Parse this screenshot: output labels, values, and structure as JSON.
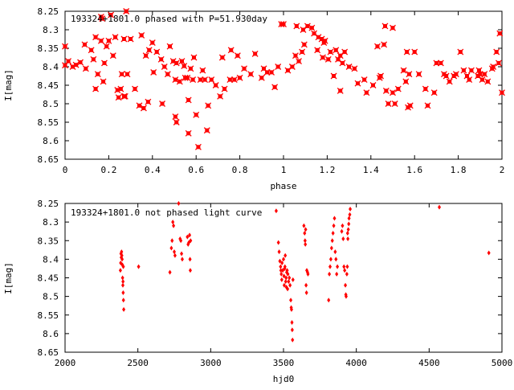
{
  "colors": {
    "marker": "#ff0000",
    "axis": "#000000",
    "background": "#ffffff"
  },
  "chart_data": [
    {
      "type": "scatter",
      "title": "193324+1801.0 phased with P=51.930day",
      "xlabel": "phase",
      "ylabel": "I[mag]",
      "xlim": [
        0,
        2
      ],
      "ylim": [
        8.65,
        8.25
      ],
      "y_inverted": true,
      "xticks": [
        0,
        0.2,
        0.4,
        0.6,
        0.8,
        1,
        1.2,
        1.4,
        1.6,
        1.8,
        2
      ],
      "xtick_labels": [
        "0",
        "0.2",
        "0.4",
        "0.6",
        "0.8",
        "1",
        "1.2",
        "1.4",
        "1.6",
        "1.8",
        "2"
      ],
      "yticks": [
        8.25,
        8.3,
        8.35,
        8.4,
        8.45,
        8.5,
        8.55,
        8.6,
        8.65
      ],
      "ytick_labels": [
        "8.25",
        "8.3",
        "8.35",
        "8.4",
        "8.45",
        "8.5",
        "8.55",
        "8.6",
        "8.65"
      ],
      "grid": false,
      "marker": "star",
      "points": [
        [
          0.0,
          8.345
        ],
        [
          0.0,
          8.396
        ],
        [
          0.015,
          8.385
        ],
        [
          0.035,
          8.4
        ],
        [
          0.05,
          8.395
        ],
        [
          0.07,
          8.388
        ],
        [
          0.09,
          8.34
        ],
        [
          0.095,
          8.405
        ],
        [
          0.12,
          8.355
        ],
        [
          0.13,
          8.38
        ],
        [
          0.14,
          8.32
        ],
        [
          0.14,
          8.46
        ],
        [
          0.15,
          8.42
        ],
        [
          0.165,
          8.33
        ],
        [
          0.165,
          8.265
        ],
        [
          0.17,
          8.27
        ],
        [
          0.175,
          8.44
        ],
        [
          0.18,
          8.39
        ],
        [
          0.19,
          8.345
        ],
        [
          0.2,
          8.33
        ],
        [
          0.21,
          8.26
        ],
        [
          0.22,
          8.37
        ],
        [
          0.23,
          8.32
        ],
        [
          0.24,
          8.463
        ],
        [
          0.245,
          8.483
        ],
        [
          0.255,
          8.46
        ],
        [
          0.26,
          8.42
        ],
        [
          0.27,
          8.48
        ],
        [
          0.27,
          8.325
        ],
        [
          0.275,
          8.48
        ],
        [
          0.28,
          8.25
        ],
        [
          0.285,
          8.42
        ],
        [
          0.3,
          8.325
        ],
        [
          0.32,
          8.46
        ],
        [
          0.34,
          8.505
        ],
        [
          0.35,
          8.315
        ],
        [
          0.36,
          8.512
        ],
        [
          0.37,
          8.37
        ],
        [
          0.38,
          8.495
        ],
        [
          0.385,
          8.355
        ],
        [
          0.4,
          8.335
        ],
        [
          0.405,
          8.415
        ],
        [
          0.42,
          8.36
        ],
        [
          0.44,
          8.38
        ],
        [
          0.445,
          8.5
        ],
        [
          0.455,
          8.4
        ],
        [
          0.47,
          8.42
        ],
        [
          0.48,
          8.345
        ],
        [
          0.495,
          8.385
        ],
        [
          0.505,
          8.535
        ],
        [
          0.505,
          8.435
        ],
        [
          0.51,
          8.39
        ],
        [
          0.51,
          8.55
        ],
        [
          0.525,
          8.44
        ],
        [
          0.535,
          8.385
        ],
        [
          0.545,
          8.398
        ],
        [
          0.55,
          8.43
        ],
        [
          0.56,
          8.43
        ],
        [
          0.565,
          8.49
        ],
        [
          0.565,
          8.58
        ],
        [
          0.575,
          8.405
        ],
        [
          0.585,
          8.435
        ],
        [
          0.59,
          8.375
        ],
        [
          0.6,
          8.53
        ],
        [
          0.61,
          8.617
        ],
        [
          0.62,
          8.435
        ],
        [
          0.63,
          8.41
        ],
        [
          0.64,
          8.435
        ],
        [
          0.65,
          8.572
        ],
        [
          0.655,
          8.505
        ],
        [
          0.67,
          8.435
        ],
        [
          0.69,
          8.45
        ],
        [
          0.71,
          8.48
        ],
        [
          0.72,
          8.375
        ],
        [
          0.73,
          8.46
        ],
        [
          0.755,
          8.435
        ],
        [
          0.76,
          8.355
        ],
        [
          0.775,
          8.435
        ],
        [
          0.79,
          8.37
        ],
        [
          0.8,
          8.43
        ],
        [
          0.82,
          8.405
        ],
        [
          0.85,
          8.42
        ],
        [
          0.87,
          8.365
        ],
        [
          0.9,
          8.43
        ],
        [
          0.91,
          8.405
        ],
        [
          0.925,
          8.415
        ],
        [
          0.945,
          8.415
        ],
        [
          0.96,
          8.455
        ],
        [
          0.975,
          8.4
        ],
        [
          0.99,
          8.285
        ],
        [
          1.0,
          8.285
        ],
        [
          1.02,
          8.41
        ],
        [
          1.04,
          8.4
        ],
        [
          1.055,
          8.37
        ],
        [
          1.06,
          8.29
        ],
        [
          1.07,
          8.385
        ],
        [
          1.085,
          8.36
        ],
        [
          1.09,
          8.3
        ],
        [
          1.095,
          8.34
        ],
        [
          1.11,
          8.29
        ],
        [
          1.13,
          8.295
        ],
        [
          1.14,
          8.31
        ],
        [
          1.155,
          8.355
        ],
        [
          1.16,
          8.32
        ],
        [
          1.175,
          8.325
        ],
        [
          1.18,
          8.375
        ],
        [
          1.185,
          8.335
        ],
        [
          1.19,
          8.33
        ],
        [
          1.205,
          8.38
        ],
        [
          1.215,
          8.36
        ],
        [
          1.23,
          8.425
        ],
        [
          1.24,
          8.355
        ],
        [
          1.25,
          8.38
        ],
        [
          1.26,
          8.37
        ],
        [
          1.26,
          8.465
        ],
        [
          1.27,
          8.39
        ],
        [
          1.28,
          8.36
        ],
        [
          1.3,
          8.4
        ],
        [
          1.325,
          8.405
        ],
        [
          1.34,
          8.445
        ],
        [
          1.37,
          8.435
        ],
        [
          1.38,
          8.47
        ],
        [
          1.41,
          8.45
        ],
        [
          1.43,
          8.345
        ],
        [
          1.44,
          8.43
        ],
        [
          1.445,
          8.425
        ],
        [
          1.46,
          8.34
        ],
        [
          1.465,
          8.29
        ],
        [
          1.47,
          8.465
        ],
        [
          1.48,
          8.5
        ],
        [
          1.5,
          8.47
        ],
        [
          1.5,
          8.295
        ],
        [
          1.51,
          8.5
        ],
        [
          1.525,
          8.46
        ],
        [
          1.55,
          8.41
        ],
        [
          1.56,
          8.44
        ],
        [
          1.565,
          8.36
        ],
        [
          1.57,
          8.51
        ],
        [
          1.575,
          8.42
        ],
        [
          1.58,
          8.505
        ],
        [
          1.6,
          8.36
        ],
        [
          1.62,
          8.42
        ],
        [
          1.65,
          8.46
        ],
        [
          1.66,
          8.505
        ],
        [
          1.69,
          8.47
        ],
        [
          1.7,
          8.39
        ],
        [
          1.72,
          8.39
        ],
        [
          1.735,
          8.42
        ],
        [
          1.745,
          8.425
        ],
        [
          1.76,
          8.44
        ],
        [
          1.78,
          8.425
        ],
        [
          1.79,
          8.42
        ],
        [
          1.81,
          8.36
        ],
        [
          1.825,
          8.41
        ],
        [
          1.84,
          8.425
        ],
        [
          1.85,
          8.435
        ],
        [
          1.86,
          8.41
        ],
        [
          1.89,
          8.425
        ],
        [
          1.895,
          8.41
        ],
        [
          1.9,
          8.42
        ],
        [
          1.91,
          8.435
        ],
        [
          1.92,
          8.42
        ],
        [
          1.935,
          8.44
        ],
        [
          1.955,
          8.405
        ],
        [
          1.96,
          8.4
        ],
        [
          1.975,
          8.36
        ],
        [
          1.985,
          8.39
        ],
        [
          1.99,
          8.31
        ],
        [
          2.0,
          8.47
        ]
      ]
    },
    {
      "type": "scatter",
      "title": "193324+1801.0 not phased light curve",
      "xlabel": "hjd0",
      "ylabel": "I[mag]",
      "xlim": [
        2000,
        5000
      ],
      "ylim": [
        8.65,
        8.25
      ],
      "y_inverted": true,
      "xticks": [
        2000,
        2500,
        3000,
        3500,
        4000,
        4500,
        5000
      ],
      "xtick_labels": [
        "2000",
        "2500",
        "3000",
        "3500",
        "4000",
        "4500",
        "5000"
      ],
      "yticks": [
        8.25,
        8.3,
        8.35,
        8.4,
        8.45,
        8.5,
        8.55,
        8.6,
        8.65
      ],
      "ytick_labels": [
        "8.25",
        "8.3",
        "8.35",
        "8.4",
        "8.45",
        "8.5",
        "8.55",
        "8.6",
        "8.65"
      ],
      "grid": false,
      "marker": "diamond",
      "points": [
        [
          2380,
          8.43
        ],
        [
          2382,
          8.41
        ],
        [
          2384,
          8.385
        ],
        [
          2386,
          8.395
        ],
        [
          2388,
          8.38
        ],
        [
          2390,
          8.39
        ],
        [
          2392,
          8.4
        ],
        [
          2394,
          8.415
        ],
        [
          2395,
          8.45
        ],
        [
          2397,
          8.47
        ],
        [
          2399,
          8.49
        ],
        [
          2401,
          8.51
        ],
        [
          2403,
          8.535
        ],
        [
          2398,
          8.46
        ],
        [
          2400,
          8.42
        ],
        [
          2505,
          8.42
        ],
        [
          2720,
          8.435
        ],
        [
          2730,
          8.37
        ],
        [
          2735,
          8.35
        ],
        [
          2740,
          8.3
        ],
        [
          2745,
          8.31
        ],
        [
          2750,
          8.38
        ],
        [
          2755,
          8.39
        ],
        [
          2780,
          8.25
        ],
        [
          2790,
          8.345
        ],
        [
          2795,
          8.35
        ],
        [
          2800,
          8.385
        ],
        [
          2805,
          8.4
        ],
        [
          2840,
          8.34
        ],
        [
          2845,
          8.36
        ],
        [
          2850,
          8.355
        ],
        [
          2855,
          8.335
        ],
        [
          2858,
          8.4
        ],
        [
          2860,
          8.43
        ],
        [
          2862,
          8.35
        ],
        [
          3450,
          8.27
        ],
        [
          3465,
          8.355
        ],
        [
          3470,
          8.38
        ],
        [
          3475,
          8.405
        ],
        [
          3480,
          8.42
        ],
        [
          3482,
          8.43
        ],
        [
          3485,
          8.44
        ],
        [
          3488,
          8.455
        ],
        [
          3490,
          8.41
        ],
        [
          3495,
          8.43
        ],
        [
          3500,
          8.4
        ],
        [
          3503,
          8.445
        ],
        [
          3505,
          8.47
        ],
        [
          3508,
          8.425
        ],
        [
          3510,
          8.42
        ],
        [
          3512,
          8.39
        ],
        [
          3515,
          8.46
        ],
        [
          3518,
          8.45
        ],
        [
          3520,
          8.475
        ],
        [
          3522,
          8.435
        ],
        [
          3525,
          8.43
        ],
        [
          3528,
          8.48
        ],
        [
          3530,
          8.44
        ],
        [
          3535,
          8.46
        ],
        [
          3540,
          8.45
        ],
        [
          3545,
          8.47
        ],
        [
          3550,
          8.51
        ],
        [
          3553,
          8.53
        ],
        [
          3555,
          8.535
        ],
        [
          3558,
          8.57
        ],
        [
          3560,
          8.59
        ],
        [
          3562,
          8.617
        ],
        [
          3565,
          8.455
        ],
        [
          3640,
          8.31
        ],
        [
          3645,
          8.33
        ],
        [
          3648,
          8.35
        ],
        [
          3650,
          8.36
        ],
        [
          3652,
          8.32
        ],
        [
          3655,
          8.47
        ],
        [
          3658,
          8.49
        ],
        [
          3660,
          8.43
        ],
        [
          3665,
          8.435
        ],
        [
          3668,
          8.44
        ],
        [
          3810,
          8.51
        ],
        [
          3815,
          8.44
        ],
        [
          3820,
          8.42
        ],
        [
          3825,
          8.4
        ],
        [
          3830,
          8.37
        ],
        [
          3835,
          8.35
        ],
        [
          3840,
          8.33
        ],
        [
          3845,
          8.31
        ],
        [
          3850,
          8.29
        ],
        [
          3855,
          8.38
        ],
        [
          3860,
          8.4
        ],
        [
          3865,
          8.44
        ],
        [
          3870,
          8.42
        ],
        [
          3900,
          8.325
        ],
        [
          3905,
          8.31
        ],
        [
          3910,
          8.345
        ],
        [
          3915,
          8.42
        ],
        [
          3920,
          8.43
        ],
        [
          3925,
          8.47
        ],
        [
          3928,
          8.495
        ],
        [
          3930,
          8.5
        ],
        [
          3935,
          8.44
        ],
        [
          3938,
          8.42
        ],
        [
          3940,
          8.33
        ],
        [
          3942,
          8.345
        ],
        [
          3945,
          8.32
        ],
        [
          3948,
          8.305
        ],
        [
          3950,
          8.29
        ],
        [
          3955,
          8.28
        ],
        [
          3958,
          8.265
        ],
        [
          4570,
          8.26
        ],
        [
          4910,
          8.383
        ]
      ]
    }
  ]
}
